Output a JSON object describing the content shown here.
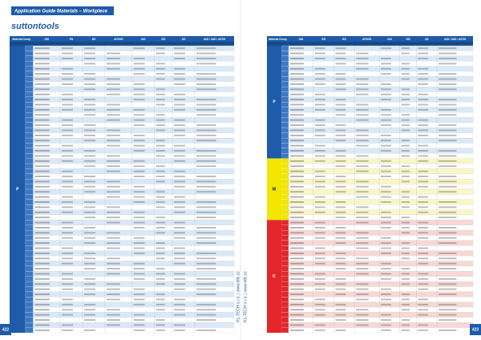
{
  "header": {
    "title": "Application Guide Materials – Workpiece",
    "brand": "suttontools"
  },
  "pages": [
    {
      "number": "422",
      "side_text": "KL-TECH s.r.o. | www.kltc.cz",
      "table": {
        "columns": [
          "Material Group",
          "DIN",
          "EN",
          "BS",
          "AFNOR",
          "UNI",
          "SIS",
          "JIS",
          "AISI / SAE / ASTM"
        ],
        "groups": [
          "P"
        ]
      }
    },
    {
      "number": "423",
      "side_text": "KL-TECH s.r.o. | www.kltc.cz",
      "table": {
        "columns": [
          "Material Group",
          "DIN",
          "EN",
          "BS",
          "AFNOR",
          "UNI",
          "SIS",
          "JIS",
          "AISI / SAE / ASTM"
        ],
        "groups": [
          "P",
          "M",
          "K"
        ]
      }
    }
  ]
}
